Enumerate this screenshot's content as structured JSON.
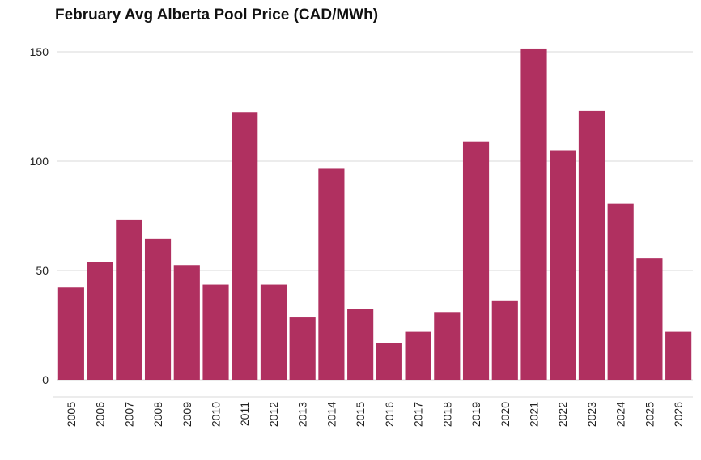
{
  "chart_data": {
    "type": "bar",
    "title": "February Avg Alberta Pool Price (CAD/MWh)",
    "xlabel": "",
    "ylabel": "",
    "categories": [
      "2005",
      "2006",
      "2007",
      "2008",
      "2009",
      "2010",
      "2011",
      "2012",
      "2013",
      "2014",
      "2015",
      "2016",
      "2017",
      "2018",
      "2019",
      "2020",
      "2021",
      "2022",
      "2023",
      "2024",
      "2025",
      "2026"
    ],
    "values": [
      42.5,
      54,
      73,
      64.5,
      52.5,
      43.5,
      122.5,
      43.5,
      28.5,
      96.5,
      32.5,
      17,
      22,
      31,
      109,
      36,
      151.5,
      105,
      123,
      80.5,
      55.5,
      22
    ],
    "ylim": [
      0,
      155
    ],
    "yticks": [
      "0",
      "50",
      "100",
      "150"
    ],
    "grid": "horizontal",
    "legend": "none",
    "bar_color": "#b03060",
    "grid_color": "#d9d9d9"
  }
}
